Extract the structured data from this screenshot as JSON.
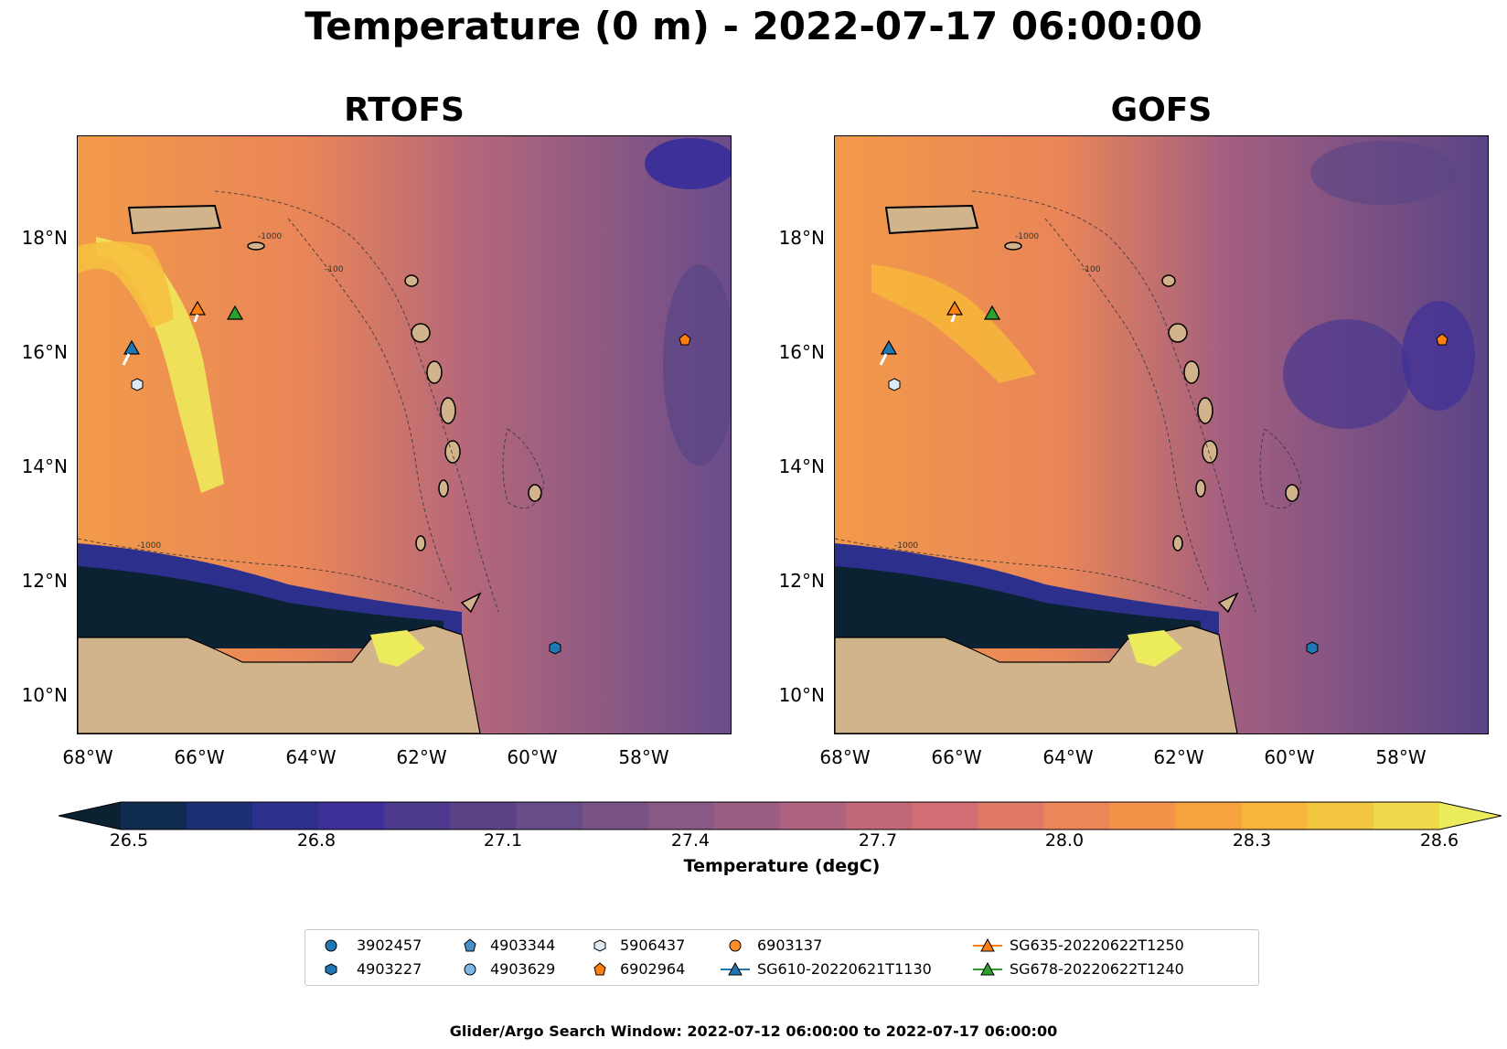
{
  "title": "Temperature (0 m) - 2022-07-17 06:00:00",
  "panels": [
    {
      "title": "RTOFS"
    },
    {
      "title": "GOFS"
    }
  ],
  "axes": {
    "y_ticks": [
      "18°N",
      "16°N",
      "14°N",
      "12°N",
      "10°N"
    ],
    "x_ticks": [
      "68°W",
      "66°W",
      "64°W",
      "62°W",
      "60°W",
      "58°W"
    ]
  },
  "contour_labels": [
    "-1000",
    "-100",
    "-1000",
    "-1000"
  ],
  "colorbar": {
    "ticks": [
      "26.5",
      "26.8",
      "27.1",
      "27.4",
      "27.7",
      "28.0",
      "28.3",
      "28.6"
    ],
    "label": "Temperature (degC)",
    "colors": [
      "#0b2233",
      "#0f2c4f",
      "#1c2f75",
      "#2d2f8c",
      "#3d3098",
      "#4d3a8e",
      "#5a4486",
      "#684c87",
      "#7a5385",
      "#8a5884",
      "#9c5d83",
      "#ae6280",
      "#c1687b",
      "#d26e73",
      "#e07868",
      "#ec8557",
      "#f4924a",
      "#f7a33e",
      "#f6b53b",
      "#f3c640",
      "#efd94a",
      "#eceb5c"
    ]
  },
  "legend": {
    "items": [
      {
        "label": "3902457",
        "marker": "circle",
        "color": "#1f77b4"
      },
      {
        "label": "4903227",
        "marker": "hexagon",
        "color": "#1f77b4"
      },
      {
        "label": "4903344",
        "marker": "pentagon",
        "color": "#4a90c8"
      },
      {
        "label": "4903629",
        "marker": "circle",
        "color": "#7fb6e8"
      },
      {
        "label": "5906437",
        "marker": "hexagon",
        "color": "#dbeaf6"
      },
      {
        "label": "6902964",
        "marker": "pentagon",
        "color": "#ff7f0e"
      },
      {
        "label": "6903137",
        "marker": "circle",
        "color": "#ff8c2a"
      },
      {
        "label": "SG610-20220621T1130",
        "marker": "triangle-line",
        "color": "#1f77b4"
      },
      {
        "label": "SG635-20220622T1250",
        "marker": "triangle-line",
        "color": "#ff7f0e"
      },
      {
        "label": "SG678-20220622T1240",
        "marker": "triangle-line",
        "color": "#2ca02c"
      }
    ]
  },
  "footer": "Glider/Argo Search Window: 2022-07-12 06:00:00 to 2022-07-17 06:00:00"
}
